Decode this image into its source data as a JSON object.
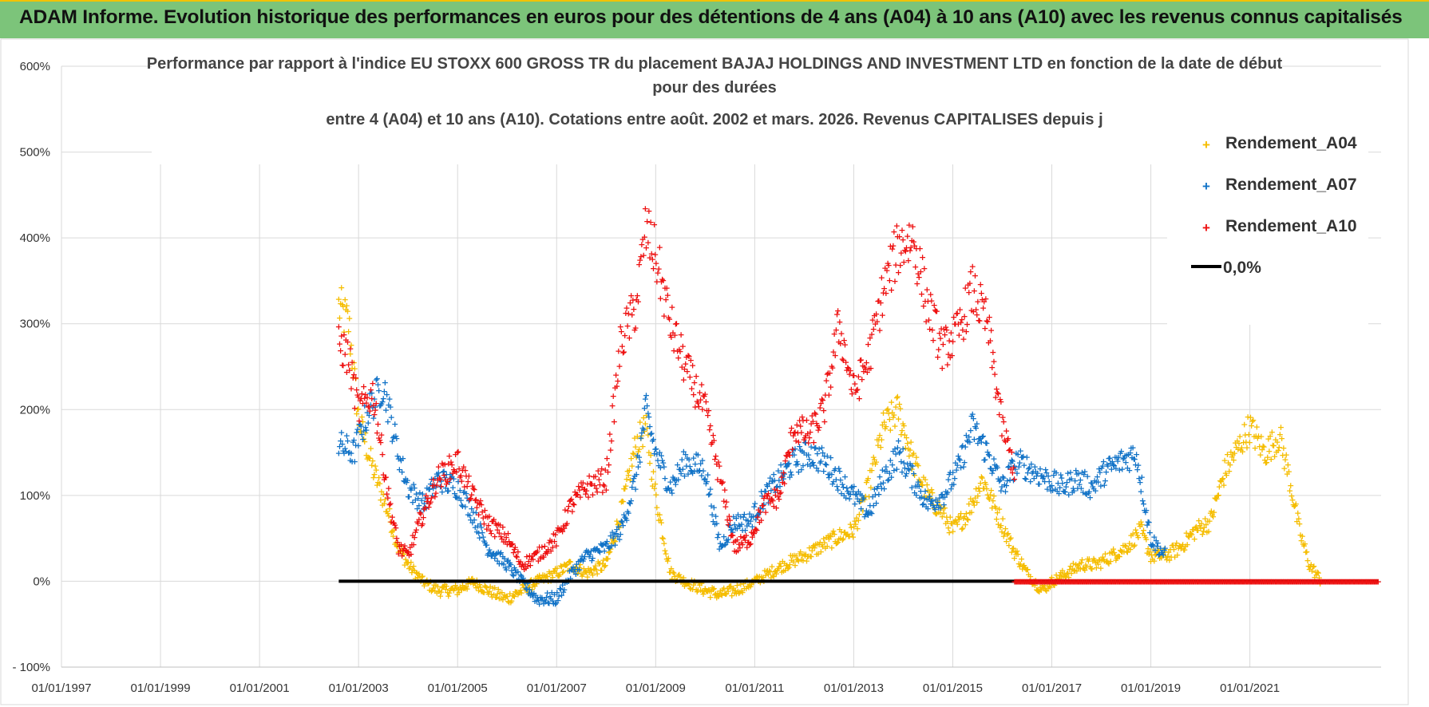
{
  "header": {
    "banner_text": "ADAM Informe. Evolution historique des performances en euros pour des détentions de 4 ans (A04) à 10 ans (A10) avec les revenus connus capitalisés"
  },
  "colors": {
    "banner_bg": "#7cc47a",
    "A04": "#f5bd00",
    "A07": "#1273c7",
    "A10": "#ee1111",
    "zero_line": "#000000"
  },
  "chart_data": {
    "type": "scatter",
    "title_lines": [
      "Performance par rapport à l'indice EU STOXX 600 GROSS TR  du placement BAJAJ HOLDINGS AND INVESTMENT LTD en fonction de la date de début",
      "pour des durées",
      "entre 4 (A04) et 10 ans (A10). Cotations entre août. 2002 et mars. 2026. Revenus CAPITALISES depuis j"
    ],
    "xlabel": "",
    "ylabel": "",
    "x_range": [
      1997.0,
      2023.65
    ],
    "ylim": [
      -100,
      600
    ],
    "y_ticks": [
      -100,
      0,
      100,
      200,
      300,
      400,
      500,
      600
    ],
    "y_tick_labels": [
      "- 100%",
      "0%",
      "100%",
      "200%",
      "300%",
      "400%",
      "500%",
      "600%"
    ],
    "x_ticks": [
      1997,
      1999,
      2001,
      2003,
      2005,
      2007,
      2009,
      2011,
      2013,
      2015,
      2017,
      2019,
      2021
    ],
    "x_tick_labels": [
      "01/01/1997",
      "01/01/1999",
      "01/01/2001",
      "01/01/2003",
      "01/01/2005",
      "01/01/2007",
      "01/01/2009",
      "01/01/2011",
      "01/01/2013",
      "01/01/2015",
      "01/01/2017",
      "01/01/2019",
      "01/01/2021"
    ],
    "legend": {
      "position": "top-right",
      "items": [
        "Rendement_A04",
        "Rendement_A07",
        "Rendement_A10",
        "0,0%"
      ]
    },
    "series": [
      {
        "name": "Rendement_A04",
        "color": "#f5bd00",
        "x_start": 2002.6,
        "x_end": 2022.45,
        "points": [
          [
            2002.6,
            320
          ],
          [
            2002.8,
            300
          ],
          [
            2003.0,
            190
          ],
          [
            2003.3,
            130
          ],
          [
            2003.6,
            80
          ],
          [
            2003.8,
            40
          ],
          [
            2004.0,
            20
          ],
          [
            2004.3,
            0
          ],
          [
            2004.6,
            -10
          ],
          [
            2005.0,
            -10
          ],
          [
            2005.3,
            0
          ],
          [
            2005.6,
            -10
          ],
          [
            2006.0,
            -20
          ],
          [
            2006.3,
            -10
          ],
          [
            2006.6,
            0
          ],
          [
            2007.0,
            10
          ],
          [
            2007.3,
            20
          ],
          [
            2007.6,
            10
          ],
          [
            2008.0,
            20
          ],
          [
            2008.3,
            80
          ],
          [
            2008.6,
            160
          ],
          [
            2008.8,
            180
          ],
          [
            2009.0,
            100
          ],
          [
            2009.3,
            10
          ],
          [
            2009.6,
            0
          ],
          [
            2010.0,
            -10
          ],
          [
            2010.3,
            -15
          ],
          [
            2010.6,
            -10
          ],
          [
            2011.0,
            0
          ],
          [
            2011.3,
            10
          ],
          [
            2011.6,
            20
          ],
          [
            2012.0,
            30
          ],
          [
            2012.3,
            40
          ],
          [
            2012.6,
            50
          ],
          [
            2013.0,
            60
          ],
          [
            2013.3,
            110
          ],
          [
            2013.6,
            180
          ],
          [
            2013.9,
            200
          ],
          [
            2014.2,
            140
          ],
          [
            2014.5,
            100
          ],
          [
            2014.8,
            80
          ],
          [
            2015.0,
            60
          ],
          [
            2015.3,
            80
          ],
          [
            2015.6,
            120
          ],
          [
            2015.9,
            80
          ],
          [
            2016.2,
            40
          ],
          [
            2016.5,
            10
          ],
          [
            2016.8,
            -10
          ],
          [
            2017.0,
            0
          ],
          [
            2017.3,
            10
          ],
          [
            2017.6,
            20
          ],
          [
            2017.9,
            20
          ],
          [
            2018.2,
            30
          ],
          [
            2018.5,
            40
          ],
          [
            2018.8,
            60
          ],
          [
            2019.0,
            30
          ],
          [
            2019.3,
            30
          ],
          [
            2019.6,
            40
          ],
          [
            2019.9,
            60
          ],
          [
            2020.2,
            70
          ],
          [
            2020.5,
            130
          ],
          [
            2020.8,
            160
          ],
          [
            2021.0,
            180
          ],
          [
            2021.3,
            150
          ],
          [
            2021.6,
            170
          ],
          [
            2021.8,
            120
          ],
          [
            2022.0,
            60
          ],
          [
            2022.2,
            20
          ],
          [
            2022.45,
            0
          ]
        ]
      },
      {
        "name": "Rendement_A07",
        "color": "#1273c7",
        "x_start": 2002.6,
        "x_end": 2019.3,
        "points": [
          [
            2002.6,
            160
          ],
          [
            2002.9,
            150
          ],
          [
            2003.2,
            200
          ],
          [
            2003.5,
            230
          ],
          [
            2003.8,
            150
          ],
          [
            2004.0,
            110
          ],
          [
            2004.3,
            90
          ],
          [
            2004.6,
            120
          ],
          [
            2005.0,
            110
          ],
          [
            2005.3,
            80
          ],
          [
            2005.6,
            40
          ],
          [
            2006.0,
            20
          ],
          [
            2006.3,
            0
          ],
          [
            2006.6,
            -20
          ],
          [
            2007.0,
            -20
          ],
          [
            2007.3,
            10
          ],
          [
            2007.6,
            30
          ],
          [
            2008.0,
            40
          ],
          [
            2008.3,
            60
          ],
          [
            2008.6,
            120
          ],
          [
            2008.8,
            200
          ],
          [
            2009.0,
            150
          ],
          [
            2009.3,
            110
          ],
          [
            2009.6,
            140
          ],
          [
            2010.0,
            130
          ],
          [
            2010.3,
            40
          ],
          [
            2010.6,
            70
          ],
          [
            2010.9,
            70
          ],
          [
            2011.2,
            100
          ],
          [
            2011.5,
            120
          ],
          [
            2011.8,
            140
          ],
          [
            2012.1,
            150
          ],
          [
            2012.4,
            140
          ],
          [
            2012.7,
            120
          ],
          [
            2013.0,
            100
          ],
          [
            2013.3,
            80
          ],
          [
            2013.6,
            120
          ],
          [
            2013.9,
            150
          ],
          [
            2014.2,
            120
          ],
          [
            2014.5,
            90
          ],
          [
            2014.8,
            100
          ],
          [
            2015.1,
            130
          ],
          [
            2015.4,
            180
          ],
          [
            2015.7,
            150
          ],
          [
            2016.0,
            110
          ],
          [
            2016.3,
            140
          ],
          [
            2016.6,
            130
          ],
          [
            2016.9,
            120
          ],
          [
            2017.2,
            110
          ],
          [
            2017.5,
            120
          ],
          [
            2017.8,
            110
          ],
          [
            2018.1,
            130
          ],
          [
            2018.4,
            140
          ],
          [
            2018.7,
            150
          ],
          [
            2019.0,
            50
          ],
          [
            2019.3,
            30
          ]
        ]
      },
      {
        "name": "Rendement_A10",
        "color": "#ee1111",
        "x_start": 2002.6,
        "x_end": 2016.25,
        "points": [
          [
            2002.6,
            280
          ],
          [
            2002.8,
            260
          ],
          [
            2003.0,
            200
          ],
          [
            2003.3,
            220
          ],
          [
            2003.6,
            100
          ],
          [
            2003.8,
            40
          ],
          [
            2004.0,
            30
          ],
          [
            2004.3,
            80
          ],
          [
            2004.6,
            120
          ],
          [
            2005.0,
            140
          ],
          [
            2005.3,
            100
          ],
          [
            2005.6,
            70
          ],
          [
            2006.0,
            50
          ],
          [
            2006.3,
            20
          ],
          [
            2006.6,
            30
          ],
          [
            2007.0,
            50
          ],
          [
            2007.3,
            90
          ],
          [
            2007.6,
            110
          ],
          [
            2008.0,
            120
          ],
          [
            2008.3,
            280
          ],
          [
            2008.6,
            320
          ],
          [
            2008.8,
            410
          ],
          [
            2009.0,
            380
          ],
          [
            2009.3,
            300
          ],
          [
            2009.6,
            250
          ],
          [
            2010.0,
            200
          ],
          [
            2010.3,
            120
          ],
          [
            2010.6,
            40
          ],
          [
            2010.9,
            50
          ],
          [
            2011.2,
            90
          ],
          [
            2011.5,
            100
          ],
          [
            2011.8,
            180
          ],
          [
            2012.1,
            170
          ],
          [
            2012.4,
            200
          ],
          [
            2012.7,
            300
          ],
          [
            2013.0,
            220
          ],
          [
            2013.3,
            260
          ],
          [
            2013.6,
            340
          ],
          [
            2013.9,
            390
          ],
          [
            2014.2,
            400
          ],
          [
            2014.5,
            320
          ],
          [
            2014.8,
            270
          ],
          [
            2015.1,
            290
          ],
          [
            2015.4,
            340
          ],
          [
            2015.7,
            300
          ],
          [
            2016.0,
            180
          ],
          [
            2016.25,
            130
          ]
        ]
      },
      {
        "name": "0,0%",
        "color": "#000000",
        "x_start": 2002.6,
        "x_end": 2023.6,
        "value": 0
      }
    ]
  }
}
